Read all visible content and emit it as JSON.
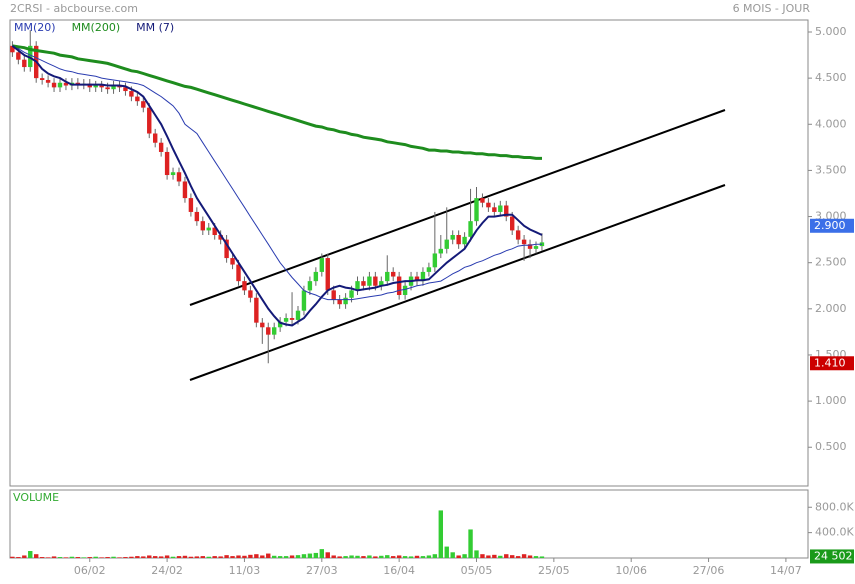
{
  "chart_data": {
    "type": "candlestick",
    "title": "2CRSI - abcbourse.com",
    "subtitle": "6 MOIS - JOUR",
    "up_color": "#33cc33",
    "down_color": "#dd2222",
    "categories": [
      null,
      null,
      null,
      null,
      null,
      null,
      null,
      null,
      null,
      null,
      null,
      null,
      null,
      "06/02",
      null,
      null,
      null,
      null,
      null,
      null,
      null,
      null,
      null,
      null,
      null,
      null,
      "24/02",
      null,
      null,
      null,
      null,
      null,
      null,
      null,
      null,
      null,
      null,
      null,
      null,
      "11/03",
      null,
      null,
      null,
      null,
      null,
      null,
      null,
      null,
      null,
      null,
      null,
      null,
      "27/03",
      null,
      null,
      null,
      null,
      null,
      null,
      null,
      null,
      null,
      null,
      null,
      null,
      "16/04",
      null,
      null,
      null,
      null,
      null,
      null,
      null,
      null,
      null,
      null,
      null,
      null,
      "05/05",
      null,
      null,
      null,
      null,
      null,
      null,
      null,
      null,
      null,
      null,
      null,
      null,
      "25/05",
      null,
      null,
      null,
      null,
      null,
      null,
      null,
      null,
      null,
      null,
      null,
      null,
      "10/06",
      null,
      null,
      null,
      null,
      null,
      null,
      null,
      null,
      null,
      null,
      null,
      null,
      "27/06",
      null,
      null,
      null,
      null,
      null,
      null,
      null,
      null,
      null,
      null,
      null,
      null,
      "14/07",
      null,
      null
    ],
    "candles": [
      [
        4.85,
        4.9,
        4.73,
        4.78
      ],
      [
        4.78,
        4.83,
        4.65,
        4.7
      ],
      [
        4.7,
        4.75,
        4.57,
        4.62
      ],
      [
        4.62,
        5.02,
        4.57,
        4.85
      ],
      [
        4.85,
        4.9,
        4.45,
        4.5
      ],
      [
        4.5,
        4.55,
        4.43,
        4.48
      ],
      [
        4.48,
        4.53,
        4.4,
        4.45
      ],
      [
        4.45,
        4.5,
        4.35,
        4.4
      ],
      [
        4.4,
        4.5,
        4.35,
        4.45
      ],
      [
        4.45,
        4.5,
        4.37,
        4.42
      ],
      [
        4.42,
        4.5,
        4.37,
        4.45
      ],
      [
        4.45,
        4.5,
        4.38,
        4.43
      ],
      [
        4.43,
        4.49,
        4.38,
        4.44
      ],
      [
        4.44,
        4.49,
        4.35,
        4.4
      ],
      [
        4.4,
        4.47,
        4.35,
        4.42
      ],
      [
        4.42,
        4.47,
        4.35,
        4.4
      ],
      [
        4.4,
        4.45,
        4.33,
        4.38
      ],
      [
        4.38,
        4.47,
        4.33,
        4.42
      ],
      [
        4.42,
        4.47,
        4.35,
        4.4
      ],
      [
        4.4,
        4.45,
        4.31,
        4.36
      ],
      [
        4.36,
        4.41,
        4.25,
        4.3
      ],
      [
        4.3,
        4.35,
        4.2,
        4.25
      ],
      [
        4.25,
        4.3,
        4.13,
        4.18
      ],
      [
        4.18,
        4.23,
        3.85,
        3.9
      ],
      [
        3.9,
        3.95,
        3.75,
        3.8
      ],
      [
        3.8,
        3.85,
        3.65,
        3.7
      ],
      [
        3.7,
        3.75,
        3.4,
        3.45
      ],
      [
        3.45,
        3.53,
        3.4,
        3.48
      ],
      [
        3.48,
        3.53,
        3.33,
        3.38
      ],
      [
        3.38,
        3.43,
        3.15,
        3.2
      ],
      [
        3.2,
        3.25,
        3.0,
        3.05
      ],
      [
        3.05,
        3.1,
        2.9,
        2.95
      ],
      [
        2.95,
        3.0,
        2.8,
        2.85
      ],
      [
        2.85,
        2.93,
        2.8,
        2.88
      ],
      [
        2.88,
        2.93,
        2.75,
        2.8
      ],
      [
        2.8,
        2.85,
        2.7,
        2.75
      ],
      [
        2.75,
        2.8,
        2.5,
        2.55
      ],
      [
        2.55,
        2.6,
        2.43,
        2.48
      ],
      [
        2.48,
        2.53,
        2.25,
        2.3
      ],
      [
        2.3,
        2.35,
        2.15,
        2.2
      ],
      [
        2.2,
        2.25,
        2.07,
        2.12
      ],
      [
        2.12,
        2.17,
        1.8,
        1.85
      ],
      [
        1.85,
        1.9,
        1.62,
        1.8
      ],
      [
        1.8,
        1.85,
        1.41,
        1.72
      ],
      [
        1.72,
        1.85,
        1.67,
        1.8
      ],
      [
        1.8,
        1.91,
        1.75,
        1.86
      ],
      [
        1.86,
        1.95,
        1.81,
        1.9
      ],
      [
        1.9,
        2.18,
        1.83,
        1.88
      ],
      [
        1.88,
        2.03,
        1.83,
        1.98
      ],
      [
        1.98,
        2.25,
        1.93,
        2.2
      ],
      [
        2.2,
        2.35,
        2.15,
        2.3
      ],
      [
        2.3,
        2.45,
        2.25,
        2.4
      ],
      [
        2.4,
        2.6,
        2.35,
        2.55
      ],
      [
        2.55,
        2.6,
        2.15,
        2.2
      ],
      [
        2.2,
        2.25,
        2.05,
        2.1
      ],
      [
        2.1,
        2.15,
        2.0,
        2.05
      ],
      [
        2.05,
        2.17,
        2.0,
        2.12
      ],
      [
        2.12,
        2.25,
        2.07,
        2.2
      ],
      [
        2.2,
        2.35,
        2.15,
        2.3
      ],
      [
        2.3,
        2.35,
        2.2,
        2.25
      ],
      [
        2.25,
        2.4,
        2.2,
        2.35
      ],
      [
        2.35,
        2.4,
        2.2,
        2.25
      ],
      [
        2.25,
        2.35,
        2.2,
        2.3
      ],
      [
        2.3,
        2.58,
        2.25,
        2.4
      ],
      [
        2.4,
        2.45,
        2.3,
        2.35
      ],
      [
        2.35,
        2.4,
        2.1,
        2.15
      ],
      [
        2.15,
        2.3,
        2.1,
        2.25
      ],
      [
        2.25,
        2.4,
        2.2,
        2.35
      ],
      [
        2.35,
        2.4,
        2.25,
        2.3
      ],
      [
        2.3,
        2.45,
        2.25,
        2.4
      ],
      [
        2.4,
        2.5,
        2.35,
        2.45
      ],
      [
        2.45,
        3.05,
        2.4,
        2.6
      ],
      [
        2.6,
        2.8,
        2.55,
        2.65
      ],
      [
        2.65,
        3.1,
        2.6,
        2.75
      ],
      [
        2.75,
        2.85,
        2.7,
        2.8
      ],
      [
        2.8,
        2.85,
        2.65,
        2.7
      ],
      [
        2.7,
        2.83,
        2.65,
        2.78
      ],
      [
        2.78,
        3.3,
        2.73,
        2.95
      ],
      [
        2.95,
        3.32,
        2.9,
        3.2
      ],
      [
        3.2,
        3.25,
        3.1,
        3.15
      ],
      [
        3.15,
        3.2,
        3.05,
        3.1
      ],
      [
        3.1,
        3.15,
        3.0,
        3.05
      ],
      [
        3.05,
        3.17,
        3.0,
        3.12
      ],
      [
        3.12,
        3.17,
        2.95,
        3.0
      ],
      [
        3.0,
        3.05,
        2.8,
        2.85
      ],
      [
        2.85,
        2.9,
        2.7,
        2.75
      ],
      [
        2.75,
        2.8,
        2.52,
        2.7
      ],
      [
        2.7,
        2.75,
        2.55,
        2.65
      ],
      [
        2.65,
        2.73,
        2.6,
        2.68
      ],
      [
        2.68,
        2.82,
        2.63,
        2.72
      ],
      null,
      null,
      null,
      null,
      null,
      null,
      null,
      null,
      null,
      null,
      null,
      null,
      null,
      null,
      null,
      null,
      null,
      null,
      null,
      null,
      null,
      null,
      null,
      null,
      null,
      null,
      null,
      null,
      null,
      null,
      null,
      null,
      null,
      null,
      null,
      null,
      null,
      null,
      null,
      null,
      null,
      null,
      null
    ],
    "series": [
      {
        "name": "MM(20)",
        "color": "#2a3cb0",
        "width": 1,
        "values": [
          4.85,
          4.82,
          4.78,
          4.75,
          4.72,
          4.69,
          4.66,
          4.63,
          4.6,
          4.58,
          4.57,
          4.55,
          4.54,
          4.53,
          4.52,
          4.5,
          4.49,
          4.48,
          4.47,
          4.46,
          4.45,
          4.44,
          4.42,
          4.38,
          4.34,
          4.3,
          4.25,
          4.2,
          4.12,
          4.0,
          3.95,
          3.9,
          3.8,
          3.7,
          3.6,
          3.5,
          3.4,
          3.3,
          3.2,
          3.1,
          3.0,
          2.9,
          2.8,
          2.7,
          2.6,
          2.5,
          2.42,
          2.34,
          2.27,
          2.2,
          2.17,
          2.15,
          2.12,
          2.1,
          2.1,
          2.1,
          2.1,
          2.1,
          2.11,
          2.12,
          2.13,
          2.14,
          2.15,
          2.17,
          2.18,
          2.2,
          2.21,
          2.23,
          2.25,
          2.26,
          2.28,
          2.29,
          2.3,
          2.34,
          2.38,
          2.41,
          2.45,
          2.47,
          2.5,
          2.52,
          2.55,
          2.58,
          2.6,
          2.63,
          2.65,
          2.68,
          2.69,
          2.69,
          2.7,
          2.7,
          null,
          null,
          null,
          null,
          null,
          null,
          null,
          null,
          null,
          null,
          null,
          null,
          null,
          null,
          null,
          null,
          null,
          null,
          null,
          null,
          null,
          null,
          null,
          null,
          null,
          null,
          null,
          null,
          null,
          null,
          null,
          null,
          null,
          null,
          null,
          null,
          null,
          null,
          null,
          null,
          null,
          null,
          null
        ]
      },
      {
        "name": "MM(200)",
        "color": "#1e8c1e",
        "width": 3,
        "values": [
          4.85,
          4.84,
          4.83,
          4.81,
          4.8,
          4.79,
          4.78,
          4.77,
          4.75,
          4.74,
          4.73,
          4.71,
          4.7,
          4.69,
          4.68,
          4.67,
          4.66,
          4.64,
          4.62,
          4.6,
          4.58,
          4.57,
          4.55,
          4.53,
          4.51,
          4.49,
          4.47,
          4.45,
          4.43,
          4.41,
          4.4,
          4.38,
          4.36,
          4.34,
          4.32,
          4.3,
          4.28,
          4.26,
          4.24,
          4.22,
          4.2,
          4.18,
          4.16,
          4.14,
          4.12,
          4.1,
          4.08,
          4.06,
          4.04,
          4.02,
          4.0,
          3.98,
          3.97,
          3.95,
          3.94,
          3.92,
          3.91,
          3.89,
          3.88,
          3.86,
          3.85,
          3.84,
          3.83,
          3.81,
          3.8,
          3.79,
          3.78,
          3.76,
          3.75,
          3.74,
          3.72,
          3.72,
          3.71,
          3.71,
          3.7,
          3.7,
          3.69,
          3.69,
          3.68,
          3.68,
          3.67,
          3.67,
          3.66,
          3.66,
          3.65,
          3.65,
          3.64,
          3.64,
          3.63,
          3.63,
          null,
          null,
          null,
          null,
          null,
          null,
          null,
          null,
          null,
          null,
          null,
          null,
          null,
          null,
          null,
          null,
          null,
          null,
          null,
          null,
          null,
          null,
          null,
          null,
          null,
          null,
          null,
          null,
          null,
          null,
          null,
          null,
          null,
          null,
          null,
          null,
          null,
          null,
          null,
          null,
          null,
          null,
          null
        ]
      },
      {
        "name": "MM (7)",
        "color": "#141a78",
        "width": 2,
        "values": [
          4.85,
          4.8,
          4.75,
          4.72,
          4.68,
          4.6,
          4.55,
          4.52,
          4.5,
          4.46,
          4.43,
          4.43,
          4.43,
          4.43,
          4.43,
          4.43,
          4.42,
          4.42,
          4.42,
          4.41,
          4.38,
          4.35,
          4.3,
          4.2,
          4.1,
          4.0,
          3.87,
          3.73,
          3.6,
          3.47,
          3.33,
          3.2,
          3.1,
          3.0,
          2.9,
          2.8,
          2.7,
          2.6,
          2.5,
          2.4,
          2.3,
          2.2,
          2.1,
          2.0,
          1.92,
          1.85,
          1.83,
          1.82,
          1.86,
          1.9,
          1.98,
          2.05,
          2.13,
          2.2,
          2.23,
          2.25,
          2.23,
          2.22,
          2.2,
          2.21,
          2.22,
          2.23,
          2.25,
          2.26,
          2.28,
          2.29,
          2.3,
          2.3,
          2.31,
          2.31,
          2.32,
          2.38,
          2.44,
          2.5,
          2.55,
          2.6,
          2.65,
          2.75,
          2.85,
          2.93,
          3.0,
          3.0,
          3.01,
          3.02,
          3.02,
          2.96,
          2.9,
          2.86,
          2.83,
          2.8,
          null,
          null,
          null,
          null,
          null,
          null,
          null,
          null,
          null,
          null,
          null,
          null,
          null,
          null,
          null,
          null,
          null,
          null,
          null,
          null,
          null,
          null,
          null,
          null,
          null,
          null,
          null,
          null,
          null,
          null,
          null,
          null,
          null,
          null,
          null,
          null,
          null,
          null,
          null,
          null,
          null,
          null,
          null
        ]
      }
    ],
    "ylim": [
      0.08,
      5.13
    ],
    "yticks": [
      {
        "value": 5,
        "label": "5.000"
      },
      {
        "value": 4.5,
        "label": "4.500"
      },
      {
        "value": 4,
        "label": "4.000"
      },
      {
        "value": 3.5,
        "label": "3.500"
      },
      {
        "value": 3,
        "label": "3.000"
      },
      {
        "value": 2.5,
        "label": "2.500"
      },
      {
        "value": 2,
        "label": "2.000"
      },
      {
        "value": 1.5,
        "label": "1.500"
      },
      {
        "value": 1,
        "label": "1.000"
      },
      {
        "value": 0.5,
        "label": "0.500"
      }
    ],
    "price_markers": [
      {
        "value": 2.9,
        "label": "2.900",
        "color": "#3b6fe8"
      },
      {
        "value": 1.41,
        "label": "1.410",
        "color": "#cc0000"
      }
    ],
    "volume": {
      "label": "VOLUME",
      "values": [
        20000,
        15000,
        40000,
        110000,
        60000,
        15000,
        10000,
        25000,
        15000,
        10000,
        20000,
        15000,
        10000,
        15000,
        20000,
        10000,
        15000,
        20000,
        10000,
        15000,
        20000,
        30000,
        25000,
        40000,
        30000,
        25000,
        40000,
        20000,
        30000,
        35000,
        20000,
        25000,
        30000,
        20000,
        30000,
        25000,
        45000,
        30000,
        40000,
        35000,
        50000,
        60000,
        40000,
        70000,
        35000,
        30000,
        30000,
        40000,
        45000,
        60000,
        70000,
        80000,
        140000,
        90000,
        40000,
        25000,
        30000,
        40000,
        35000,
        30000,
        40000,
        25000,
        35000,
        45000,
        30000,
        40000,
        30000,
        25000,
        35000,
        30000,
        40000,
        60000,
        750000,
        180000,
        90000,
        40000,
        60000,
        450000,
        120000,
        60000,
        40000,
        50000,
        35000,
        60000,
        45000,
        30000,
        60000,
        40000,
        30000,
        24502,
        null,
        null,
        null,
        null,
        null,
        null,
        null,
        null,
        null,
        null,
        null,
        null,
        null,
        null,
        null,
        null,
        null,
        null,
        null,
        null,
        null,
        null,
        null,
        null,
        null,
        null,
        null,
        null,
        null,
        null,
        null,
        null,
        null,
        null,
        null,
        null,
        null,
        null,
        null,
        null,
        null,
        null,
        null
      ],
      "ylim": [
        0,
        1072000
      ],
      "yticks": [
        {
          "value": 800000,
          "label": "800.0K"
        },
        {
          "value": 400000,
          "label": "400.0K"
        }
      ],
      "marker": {
        "value": 24502,
        "label": "24 502",
        "color": "#1a9a1a"
      }
    }
  }
}
